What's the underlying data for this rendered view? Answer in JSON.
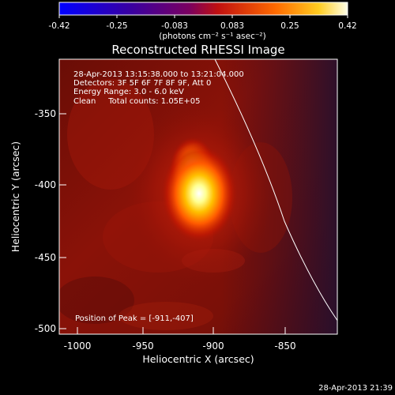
{
  "colorbar": {
    "ticks": [
      "-0.42",
      "-0.25",
      "-0.083",
      "0.083",
      "0.25",
      "0.42"
    ],
    "units": "(photons cm⁻² s⁻¹ asec⁻²)"
  },
  "title": "Reconstructed RHESSI Image",
  "info": {
    "time_range": "28-Apr-2013 13:15:38.000 to 13:21:04.000",
    "detectors": "Detectors: 3F 5F 6F 7F 8F 9F, Att 0",
    "energy": "Energy Range: 3.0 - 6.0 keV",
    "method": "Clean     Total counts: 1.05E+05",
    "peak": "Position of Peak = [-911,-407]"
  },
  "axes": {
    "xlabel": "Heliocentric X (arcsec)",
    "ylabel": "Heliocentric Y (arcsec)",
    "xticks": [
      "-1000",
      "-950",
      "-900",
      "-850"
    ],
    "yticks": [
      "-350",
      "-400",
      "-450",
      "-500"
    ]
  },
  "footer": {
    "timestamp": "28-Apr-2013 21:39"
  }
}
